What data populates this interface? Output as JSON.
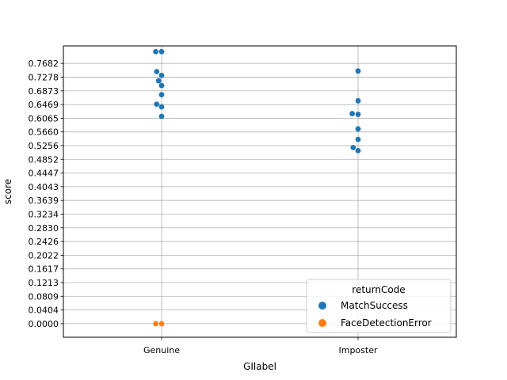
{
  "chart_data": {
    "type": "scatter",
    "title": "",
    "xlabel": "GIlabel",
    "ylabel": "score",
    "categories": [
      "Genuine",
      "Imposter"
    ],
    "ylim": [
      -0.04,
      0.82
    ],
    "yticks": [
      "0.0000",
      "0.0404",
      "0.0809",
      "0.1213",
      "0.1617",
      "0.2022",
      "0.2426",
      "0.2830",
      "0.3234",
      "0.3639",
      "0.4043",
      "0.4447",
      "0.4852",
      "0.5256",
      "0.5660",
      "0.6065",
      "0.6469",
      "0.6873",
      "0.7278",
      "0.7682"
    ],
    "ytick_values": [
      0.0,
      0.0404,
      0.0809,
      0.1213,
      0.1617,
      0.2022,
      0.2426,
      0.283,
      0.3234,
      0.3639,
      0.4043,
      0.4447,
      0.4852,
      0.5256,
      0.566,
      0.6065,
      0.6469,
      0.6873,
      0.7278,
      0.7682
    ],
    "grid": true,
    "legend": {
      "title": "returnCode",
      "placement": "lower-right",
      "entries": [
        {
          "name": "MatchSuccess",
          "color": "#1f77b4"
        },
        {
          "name": "FaceDetectionError",
          "color": "#ff7f0e"
        }
      ]
    },
    "series": [
      {
        "name": "MatchSuccess",
        "color": "#1f77b4",
        "points": [
          {
            "category": "Genuine",
            "y": 0.803,
            "offset": -0.03
          },
          {
            "category": "Genuine",
            "y": 0.803,
            "offset": 0.0
          },
          {
            "category": "Genuine",
            "y": 0.744,
            "offset": -0.025
          },
          {
            "category": "Genuine",
            "y": 0.733,
            "offset": 0.0
          },
          {
            "category": "Genuine",
            "y": 0.717,
            "offset": -0.015
          },
          {
            "category": "Genuine",
            "y": 0.703,
            "offset": 0.0
          },
          {
            "category": "Genuine",
            "y": 0.676,
            "offset": 0.0
          },
          {
            "category": "Genuine",
            "y": 0.648,
            "offset": -0.025
          },
          {
            "category": "Genuine",
            "y": 0.64,
            "offset": 0.0
          },
          {
            "category": "Genuine",
            "y": 0.612,
            "offset": 0.0
          },
          {
            "category": "Imposter",
            "y": 0.746,
            "offset": 0.0
          },
          {
            "category": "Imposter",
            "y": 0.658,
            "offset": 0.0
          },
          {
            "category": "Imposter",
            "y": 0.62,
            "offset": -0.03
          },
          {
            "category": "Imposter",
            "y": 0.618,
            "offset": 0.0
          },
          {
            "category": "Imposter",
            "y": 0.575,
            "offset": 0.0
          },
          {
            "category": "Imposter",
            "y": 0.544,
            "offset": 0.0
          },
          {
            "category": "Imposter",
            "y": 0.52,
            "offset": -0.025
          },
          {
            "category": "Imposter",
            "y": 0.511,
            "offset": 0.0
          }
        ]
      },
      {
        "name": "FaceDetectionError",
        "color": "#ff7f0e",
        "points": [
          {
            "category": "Genuine",
            "y": 0.0,
            "offset": -0.03
          },
          {
            "category": "Genuine",
            "y": 0.0,
            "offset": 0.0
          }
        ]
      }
    ]
  }
}
